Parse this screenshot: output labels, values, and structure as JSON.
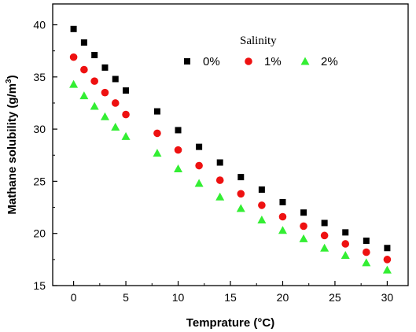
{
  "chart_data": {
    "type": "scatter",
    "xlabel": "Temprature (°C)",
    "ylabel": "Mathane solubility (g/m",
    "ylabel_superscript": "3",
    "ylabel_suffix": ")",
    "xlim": [
      -2,
      32
    ],
    "ylim": [
      15,
      42
    ],
    "xticks": [
      0,
      5,
      10,
      15,
      20,
      25,
      30
    ],
    "yticks": [
      15,
      20,
      25,
      30,
      35,
      40
    ],
    "xtick_labels": [
      "0",
      "5",
      "10",
      "15",
      "20",
      "25",
      "30"
    ],
    "ytick_labels": [
      "15",
      "20",
      "25",
      "30",
      "35",
      "40"
    ],
    "legend": {
      "title": "Salinity",
      "placement": "top-right"
    },
    "grid": false,
    "series": [
      {
        "name": "0%",
        "marker": "square",
        "color": "#000000",
        "x": [
          0,
          1,
          2,
          3,
          4,
          5,
          8,
          10,
          12,
          14,
          16,
          18,
          20,
          22,
          24,
          26,
          28,
          30
        ],
        "y": [
          39.6,
          38.3,
          37.1,
          35.9,
          34.8,
          33.7,
          31.7,
          29.9,
          28.3,
          26.8,
          25.4,
          24.2,
          23.0,
          22.0,
          21.0,
          20.1,
          19.3,
          18.6
        ]
      },
      {
        "name": "1%",
        "marker": "circle",
        "color": "#ee1111",
        "x": [
          0,
          1,
          2,
          3,
          4,
          5,
          8,
          10,
          12,
          14,
          16,
          18,
          20,
          22,
          24,
          26,
          28,
          30
        ],
        "y": [
          36.9,
          35.7,
          34.6,
          33.5,
          32.5,
          31.4,
          29.6,
          28.0,
          26.5,
          25.1,
          23.8,
          22.7,
          21.6,
          20.7,
          19.8,
          19.0,
          18.2,
          17.5
        ]
      },
      {
        "name": "2%",
        "marker": "triangle",
        "color": "#33ee33",
        "x": [
          0,
          1,
          2,
          3,
          4,
          5,
          8,
          10,
          12,
          14,
          16,
          18,
          20,
          22,
          24,
          26,
          28,
          30
        ],
        "y": [
          34.3,
          33.2,
          32.2,
          31.2,
          30.2,
          29.3,
          27.7,
          26.2,
          24.8,
          23.5,
          22.4,
          21.3,
          20.3,
          19.5,
          18.6,
          17.9,
          17.2,
          16.5
        ]
      }
    ]
  }
}
